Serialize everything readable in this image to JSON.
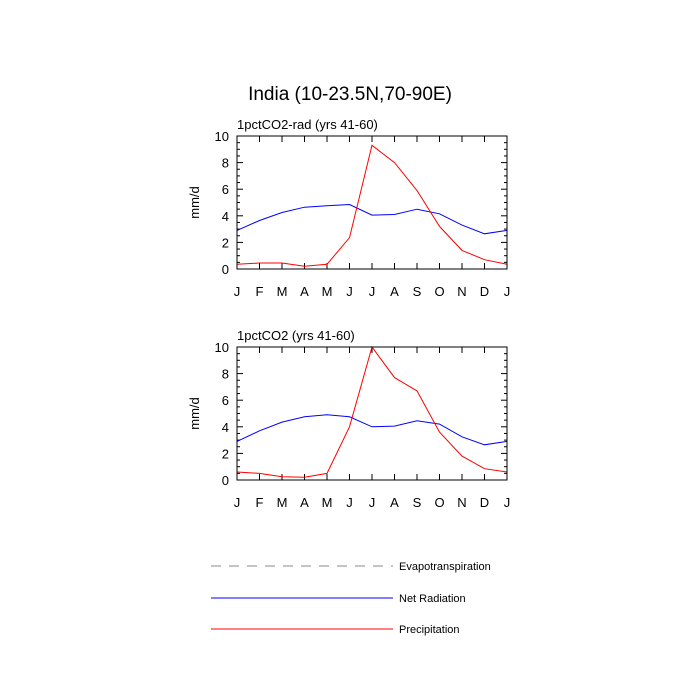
{
  "title": "India (10-23.5N,70-90E)",
  "chart_data": [
    {
      "type": "line",
      "subtitle": "1pctCO2-rad (yrs 41-60)",
      "ylabel": "mm/d",
      "xlabel": "",
      "ylim": [
        0,
        10
      ],
      "yticks": [
        "0",
        "2",
        "4",
        "6",
        "8",
        "10"
      ],
      "categories": [
        "J",
        "F",
        "M",
        "A",
        "M",
        "J",
        "J",
        "A",
        "S",
        "O",
        "N",
        "D",
        "J"
      ],
      "series": [
        {
          "name": "Net Radiation",
          "color": "#0000ff",
          "values": [
            2.9,
            3.65,
            4.25,
            4.65,
            4.75,
            4.85,
            4.05,
            4.1,
            4.5,
            4.15,
            3.3,
            2.65,
            2.9
          ]
        },
        {
          "name": "Precipitation",
          "color": "#ff0000",
          "values": [
            0.35,
            0.45,
            0.45,
            0.2,
            0.35,
            2.35,
            9.3,
            8.0,
            5.9,
            3.2,
            1.4,
            0.7,
            0.35
          ]
        }
      ],
      "grid": false
    },
    {
      "type": "line",
      "subtitle": "1pctCO2 (yrs 41-60)",
      "ylabel": "mm/d",
      "xlabel": "",
      "ylim": [
        0,
        10
      ],
      "yticks": [
        "0",
        "2",
        "4",
        "6",
        "8",
        "10"
      ],
      "categories": [
        "J",
        "F",
        "M",
        "A",
        "M",
        "J",
        "J",
        "A",
        "S",
        "O",
        "N",
        "D",
        "J"
      ],
      "series": [
        {
          "name": "Net Radiation",
          "color": "#0000ff",
          "values": [
            2.9,
            3.7,
            4.35,
            4.75,
            4.9,
            4.75,
            4.0,
            4.05,
            4.45,
            4.2,
            3.25,
            2.65,
            2.9
          ]
        },
        {
          "name": "Precipitation",
          "color": "#ff0000",
          "values": [
            0.6,
            0.5,
            0.25,
            0.2,
            0.5,
            4.0,
            10.0,
            7.7,
            6.7,
            3.6,
            1.8,
            0.85,
            0.6
          ]
        }
      ],
      "grid": false
    }
  ],
  "legend": {
    "placement": "bottom",
    "items": [
      {
        "label": "Evapotranspiration",
        "color": "#888888",
        "dashed": true
      },
      {
        "label": "Net Radiation",
        "color": "#0000ff",
        "dashed": false
      },
      {
        "label": "Precipitation",
        "color": "#ff0000",
        "dashed": false
      }
    ]
  }
}
